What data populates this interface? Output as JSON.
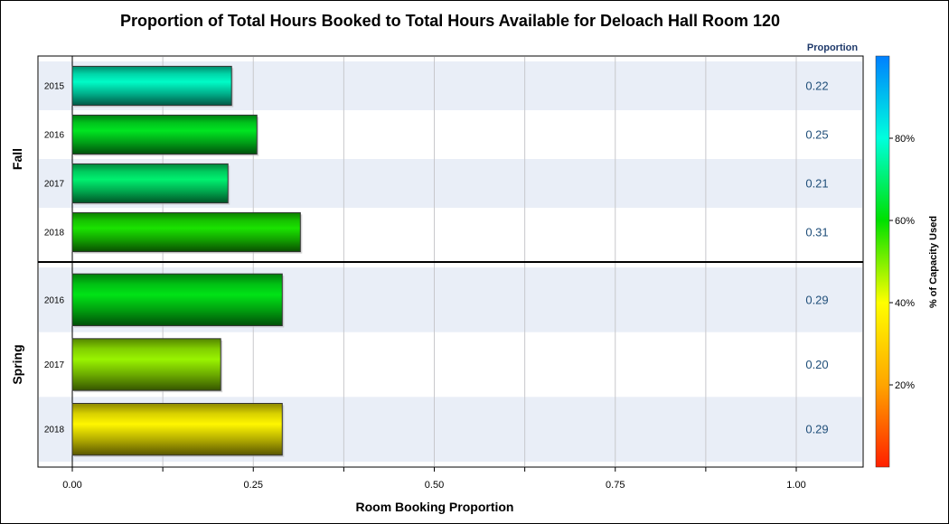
{
  "chart_data": {
    "type": "bar",
    "orientation": "horizontal",
    "title": "Proportion of Total Hours Booked to Total Hours Available for Deloach Hall Room 120",
    "xlabel": "Room Booking Proportion",
    "xlim": [
      0,
      1.1
    ],
    "xticks": [
      "0.00",
      "0.25",
      "0.50",
      "0.75",
      "1.00"
    ],
    "value_column_header": "Proportion",
    "grid": true,
    "panels": [
      {
        "name": "Fall",
        "bars": [
          {
            "year": "2015",
            "value": 0.22,
            "label": "0.22",
            "capacity_pct": 78
          },
          {
            "year": "2016",
            "value": 0.255,
            "label": "0.25",
            "capacity_pct": 63
          },
          {
            "year": "2017",
            "value": 0.215,
            "label": "0.21",
            "capacity_pct": 70
          },
          {
            "year": "2018",
            "value": 0.315,
            "label": "0.31",
            "capacity_pct": 58
          }
        ]
      },
      {
        "name": "Spring",
        "bars": [
          {
            "year": "2016",
            "value": 0.29,
            "label": "0.29",
            "capacity_pct": 62
          },
          {
            "year": "2017",
            "value": 0.205,
            "label": "0.20",
            "capacity_pct": 48
          },
          {
            "year": "2018",
            "value": 0.29,
            "label": "0.29",
            "capacity_pct": 38
          }
        ]
      }
    ],
    "colorbar": {
      "title": "% of Capacity Used",
      "range": [
        0,
        100
      ],
      "ticks": [
        "20%",
        "40%",
        "60%",
        "80%"
      ],
      "tick_values": [
        20,
        40,
        60,
        80
      ],
      "colors": [
        "#ff2000",
        "#ffa500",
        "#ffff00",
        "#00e000",
        "#00ffdd",
        "#0080ff"
      ]
    }
  }
}
